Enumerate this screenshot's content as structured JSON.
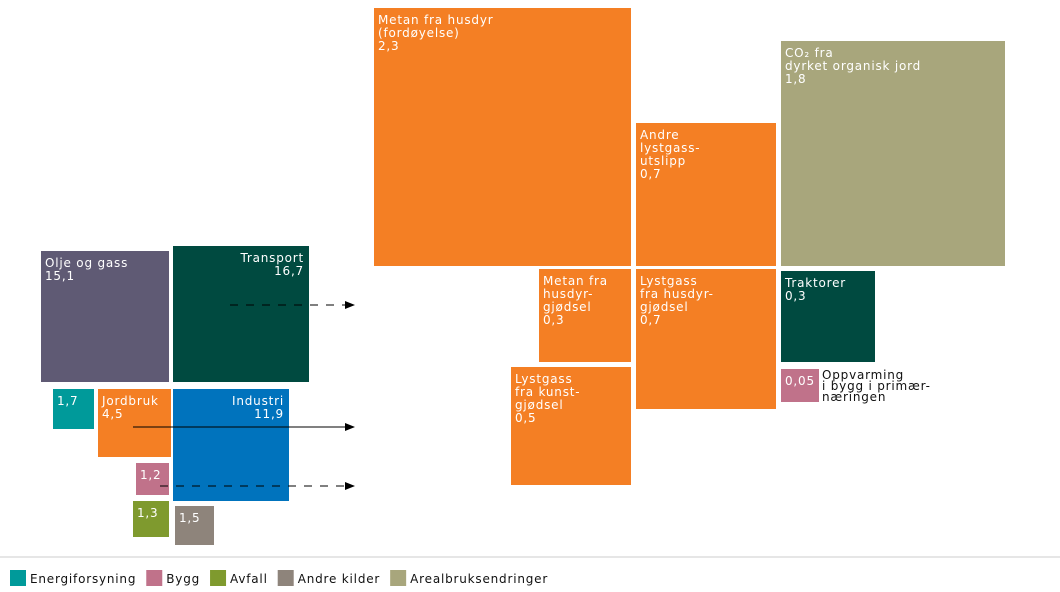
{
  "nodes": [
    {
      "lines": [
        "Olje og gass"
      ],
      "value": "15,1",
      "color": "#5f5a74"
    },
    {
      "lines": [
        "Transport"
      ],
      "value": "16,7",
      "color": "#004a40"
    },
    {
      "lines": [],
      "value": "1,7",
      "color": "#009a9a"
    },
    {
      "lines": [
        "Jordbruk"
      ],
      "value": "4,5",
      "color": "#f47f24"
    },
    {
      "lines": [
        "Industri"
      ],
      "value": "11,9",
      "color": "#0073bd"
    },
    {
      "lines": [],
      "value": "1,2",
      "color": "#c0728a"
    },
    {
      "lines": [],
      "value": "1,3",
      "color": "#7f9a2e"
    },
    {
      "lines": [],
      "value": "1,5",
      "color": "#8e847b"
    },
    {
      "lines": [
        "Metan fra husdyr",
        "(fordøyelse)"
      ],
      "value": "2,3",
      "color": "#f47f24"
    },
    {
      "lines": [
        "CO₂ fra",
        "dyrket organisk jord"
      ],
      "value": "1,8",
      "color": "#a8a67c"
    },
    {
      "lines": [
        "Andre",
        "lystgass-",
        "utslipp"
      ],
      "value": "0,7",
      "color": "#f47f24"
    },
    {
      "lines": [
        "Metan fra",
        "husdyr-",
        "gjødsel"
      ],
      "value": "0,3",
      "color": "#f47f24"
    },
    {
      "lines": [
        "Lystgass",
        "fra husdyr-",
        "gjødsel"
      ],
      "value": "0,7",
      "color": "#f47f24"
    },
    {
      "lines": [
        "Traktorer"
      ],
      "value": "0,3",
      "color": "#004a40"
    },
    {
      "lines": [
        "Lystgass",
        "fra kunst-",
        "gjødsel"
      ],
      "value": "0,5",
      "color": "#f47f24"
    },
    {
      "lines": [],
      "value": "0,05",
      "color": "#c0728a",
      "outside": [
        "Oppvarming",
        "i bygg i primær-",
        "næringen"
      ]
    }
  ],
  "legend": [
    {
      "name": "Energiforsyning",
      "color": "#009a9a"
    },
    {
      "name": "Bygg",
      "color": "#c0728a"
    },
    {
      "name": "Avfall",
      "color": "#7f9a2e"
    },
    {
      "name": "Andre kilder",
      "color": "#8e847b"
    },
    {
      "name": "Arealbruksendringer",
      "color": "#a8a67c"
    }
  ]
}
